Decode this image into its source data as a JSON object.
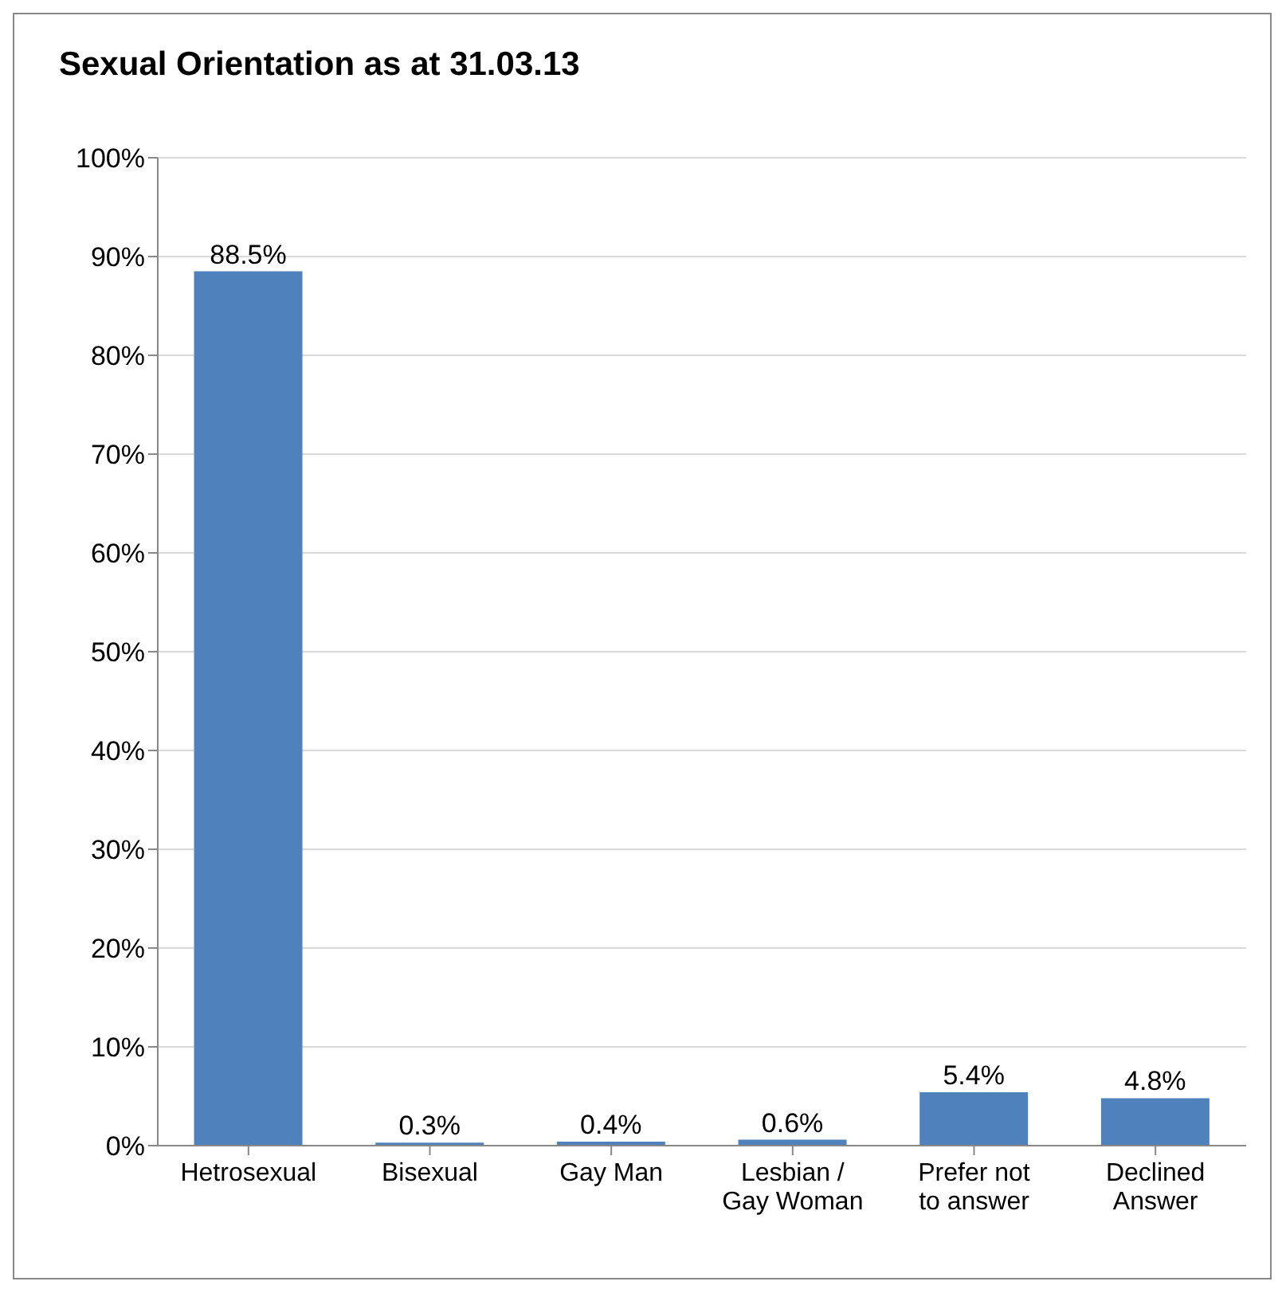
{
  "chart_data": {
    "type": "bar",
    "title": "Sexual Orientation as at 31.03.13",
    "categories": [
      "Hetrosexual",
      "Bisexual",
      "Gay Man",
      "Lesbian / Gay Woman",
      "Prefer not to answer",
      "Declined Answer"
    ],
    "values": [
      88.5,
      0.3,
      0.4,
      0.6,
      5.4,
      4.8
    ],
    "value_labels": [
      "88.5%",
      "0.3%",
      "0.4%",
      "0.6%",
      "5.4%",
      "4.8%"
    ],
    "color": "#4f81bd",
    "ylim": [
      0,
      100
    ],
    "yticks": [
      {
        "value": 0,
        "label": "0%"
      },
      {
        "value": 10,
        "label": "10%"
      },
      {
        "value": 20,
        "label": "20%"
      },
      {
        "value": 30,
        "label": "30%"
      },
      {
        "value": 40,
        "label": "40%"
      },
      {
        "value": 50,
        "label": "50%"
      },
      {
        "value": 60,
        "label": "60%"
      },
      {
        "value": 70,
        "label": "70%"
      },
      {
        "value": 80,
        "label": "80%"
      },
      {
        "value": 90,
        "label": "90%"
      },
      {
        "value": 100,
        "label": "100%"
      }
    ],
    "grid": "y",
    "legend": false
  }
}
